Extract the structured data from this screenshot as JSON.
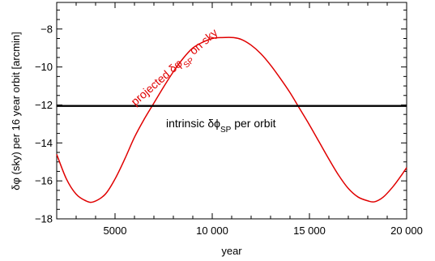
{
  "chart_data": {
    "type": "line",
    "title": "",
    "xlabel": "year",
    "ylabel": "δφ (sky) per 16 year orbit [arcmin]",
    "xlim": [
      2000,
      20000
    ],
    "ylim": [
      -18,
      -6.6
    ],
    "x_ticks": [
      5000,
      10000,
      15000,
      20000
    ],
    "x_tick_labels": [
      "5000",
      "10 000",
      "15 000",
      "20 000"
    ],
    "y_ticks": [
      -18,
      -16,
      -14,
      -12,
      -10,
      -8
    ],
    "y_tick_labels": [
      "−18",
      "−16",
      "−14",
      "−12",
      "−10",
      "−8"
    ],
    "grid": false,
    "series": [
      {
        "name": "projected δφ_SP on sky",
        "color": "#e00000",
        "x": [
          2000,
          2500,
          3000,
          3500,
          3900,
          4500,
          5000,
          5500,
          6000,
          6500,
          7000,
          7500,
          8000,
          8500,
          9000,
          9500,
          10000,
          10500,
          11100,
          11500,
          12000,
          12500,
          13000,
          13500,
          14000,
          14500,
          15000,
          15500,
          16000,
          16500,
          17000,
          17500,
          18000,
          18350,
          18800,
          19300,
          19700,
          20000
        ],
        "y": [
          -14.6,
          -15.9,
          -16.7,
          -17.05,
          -17.1,
          -16.7,
          -15.9,
          -14.85,
          -13.7,
          -12.75,
          -11.9,
          -11.05,
          -10.25,
          -9.55,
          -9.0,
          -8.7,
          -8.5,
          -8.45,
          -8.45,
          -8.55,
          -8.85,
          -9.3,
          -9.9,
          -10.6,
          -11.35,
          -12.2,
          -13.05,
          -13.95,
          -14.85,
          -15.7,
          -16.4,
          -16.85,
          -17.05,
          -17.1,
          -16.85,
          -16.3,
          -15.75,
          -15.3
        ]
      },
      {
        "name": "intrinsic δϕ_SP per orbit",
        "color": "#000000",
        "x": [
          2000,
          20000
        ],
        "y": [
          -12.05,
          -12.05
        ]
      }
    ],
    "annotations": [
      {
        "prefix": "projected δφ",
        "sub": "SP",
        "suffix": " on sky",
        "color": "#e00000"
      },
      {
        "prefix": "intrinsic δϕ",
        "sub": "SP",
        "suffix": " per orbit",
        "color": "#000000"
      }
    ]
  }
}
